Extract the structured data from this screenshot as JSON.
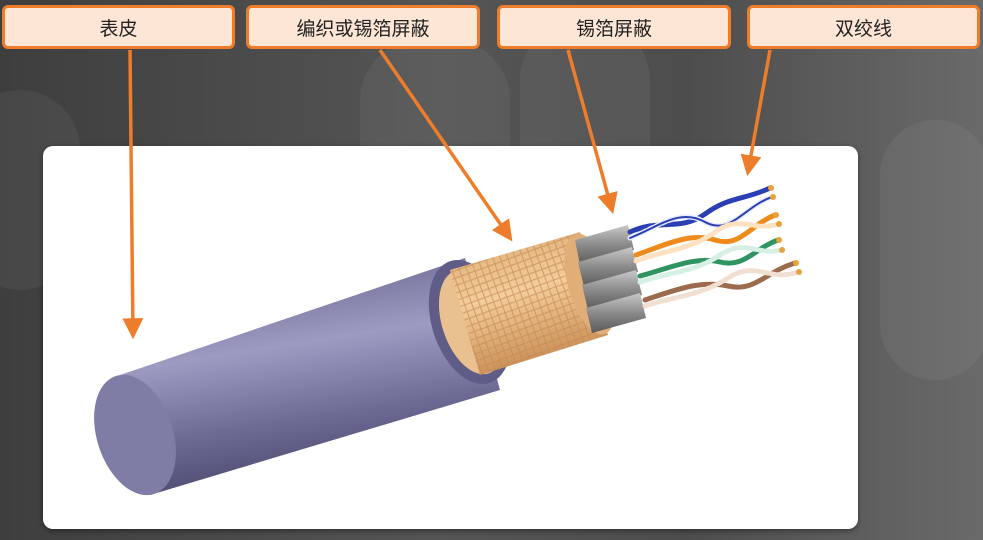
{
  "labels": {
    "jacket": "表皮",
    "braid_or_foil_shield": "编织或锡箔屏蔽",
    "foil_shield": "锡箔屏蔽",
    "twisted_pair": "双绞线"
  },
  "colors": {
    "label_fill": "#fde6d6",
    "label_border": "#ee7d2b",
    "arrow": "#ee7d2b",
    "jacket": "#6f6c93",
    "braid": "#e8bb86",
    "pair_blue": "#2a3fb4",
    "pair_orange": "#ef8a1d",
    "pair_green": "#2f9462",
    "pair_brown": "#9c6a4c"
  }
}
